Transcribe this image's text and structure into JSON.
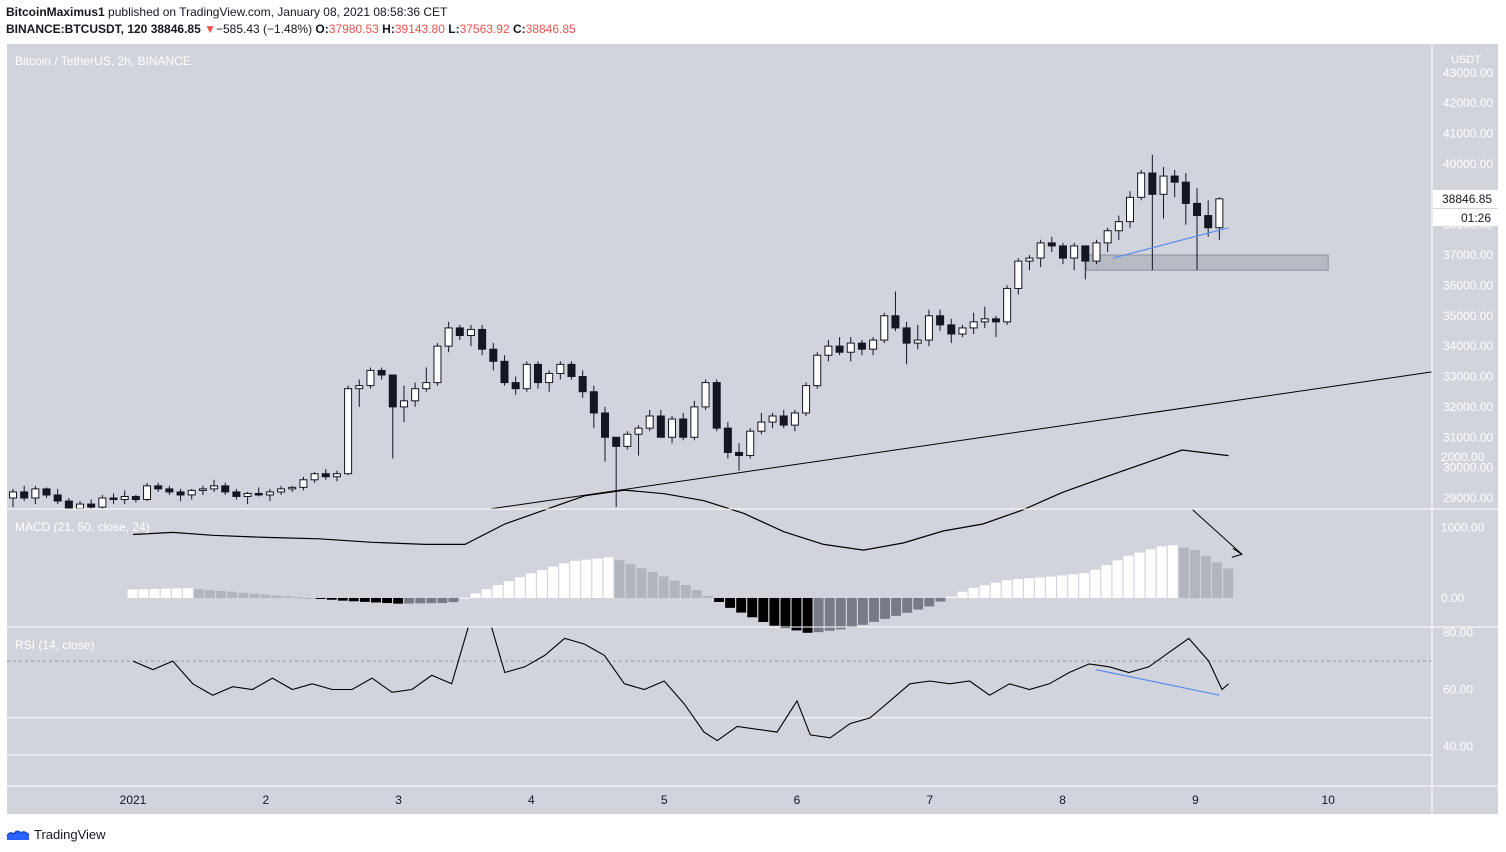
{
  "header": {
    "publisher": "BitcoinMaximus1",
    "published_text": "published on TradingView.com, January 08, 2021 08:58:36 CET",
    "symbol": "BINANCE:BTCUSDT, 120",
    "last": "38846.85",
    "change_arrow": "▼",
    "change": "−585.43 (−1.48%)",
    "o_label": "O:",
    "o_value": "37980.53",
    "h_label": "H:",
    "h_value": "39143.80",
    "l_label": "L:",
    "l_value": "37563.92",
    "c_label": "C:",
    "c_value": "38846.85"
  },
  "brand": {
    "name": "TradingView",
    "icon": "tradingview-logo-icon"
  },
  "colors": {
    "background": "#d1d4dc",
    "candle_up": "#ffffff",
    "candle_down": "#131722",
    "trendline": "#000000",
    "divergence": "#5b8def",
    "support_zone": "#b2b5be"
  },
  "chart_data": {
    "type": "candlestick",
    "title": "Bitcoin / TetherUS, 2h, BINANCE",
    "price_axis_label": "USDT",
    "last_price_label": "38846.85",
    "countdown_label": "01:26",
    "ylim": [
      28500,
      43300
    ],
    "y_ticks": [
      "29000.00",
      "30000.00",
      "31000.00",
      "32000.00",
      "33000.00",
      "34000.00",
      "35000.00",
      "36000.00",
      "37000.00",
      "38000.00",
      "39000.00",
      "40000.00",
      "41000.00",
      "42000.00",
      "43000.00"
    ],
    "x_ticks": [
      "2021",
      "2",
      "3",
      "4",
      "5",
      "6",
      "7",
      "8",
      "9",
      "10"
    ],
    "x_range_days": [
      0.0,
      10.8
    ],
    "candles": [
      [
        29000,
        29300,
        28700,
        29200
      ],
      [
        29200,
        29400,
        28900,
        29000
      ],
      [
        29000,
        29400,
        28800,
        29300
      ],
      [
        29300,
        29350,
        29000,
        29100
      ],
      [
        29100,
        29300,
        28800,
        28900
      ],
      [
        28900,
        29000,
        28500,
        28650
      ],
      [
        28650,
        28900,
        28600,
        28800
      ],
      [
        28800,
        28950,
        28600,
        28700
      ],
      [
        28700,
        29100,
        28600,
        29000
      ],
      [
        29000,
        29150,
        28800,
        28950
      ],
      [
        28950,
        29250,
        28800,
        29050
      ],
      [
        29050,
        29100,
        28850,
        28950
      ],
      [
        28950,
        29500,
        28900,
        29400
      ],
      [
        29400,
        29500,
        29200,
        29300
      ],
      [
        29300,
        29400,
        29100,
        29200
      ],
      [
        29200,
        29300,
        28900,
        29100
      ],
      [
        29100,
        29300,
        28950,
        29250
      ],
      [
        29250,
        29400,
        29100,
        29300
      ],
      [
        29300,
        29600,
        29200,
        29400
      ],
      [
        29400,
        29500,
        29100,
        29200
      ],
      [
        29200,
        29300,
        28950,
        29050
      ],
      [
        29050,
        29200,
        28800,
        29150
      ],
      [
        29150,
        29350,
        29050,
        29100
      ],
      [
        29100,
        29300,
        28900,
        29200
      ],
      [
        29200,
        29400,
        29100,
        29300
      ],
      [
        29300,
        29400,
        29200,
        29350
      ],
      [
        29350,
        29700,
        29250,
        29600
      ],
      [
        29600,
        29850,
        29500,
        29800
      ],
      [
        29800,
        29950,
        29600,
        29700
      ],
      [
        29700,
        29900,
        29550,
        29800
      ],
      [
        29800,
        32700,
        29750,
        32600
      ],
      [
        32600,
        32900,
        32000,
        32700
      ],
      [
        32700,
        33300,
        32600,
        33200
      ],
      [
        33200,
        33300,
        32900,
        33050
      ],
      [
        33050,
        33000,
        30300,
        32000
      ],
      [
        32000,
        32700,
        31500,
        32200
      ],
      [
        32200,
        32800,
        32000,
        32600
      ],
      [
        32600,
        33300,
        32500,
        32800
      ],
      [
        32800,
        34100,
        32700,
        34000
      ],
      [
        34000,
        34800,
        33800,
        34600
      ],
      [
        34600,
        34700,
        34200,
        34350
      ],
      [
        34350,
        34700,
        34000,
        34550
      ],
      [
        34550,
        34700,
        33700,
        33900
      ],
      [
        33900,
        34100,
        33200,
        33500
      ],
      [
        33500,
        33700,
        32700,
        32800
      ],
      [
        32800,
        33000,
        32400,
        32600
      ],
      [
        32600,
        33500,
        32500,
        33400
      ],
      [
        33400,
        33500,
        32600,
        32800
      ],
      [
        32800,
        33200,
        32500,
        33100
      ],
      [
        33100,
        33500,
        32900,
        33400
      ],
      [
        33400,
        33500,
        32900,
        33000
      ],
      [
        33000,
        33200,
        32300,
        32500
      ],
      [
        32500,
        32700,
        31300,
        31800
      ],
      [
        31800,
        32000,
        30200,
        31000
      ],
      [
        31000,
        30900,
        28700,
        30700
      ],
      [
        30700,
        31200,
        30600,
        31100
      ],
      [
        31100,
        31400,
        30400,
        31300
      ],
      [
        31300,
        31900,
        31200,
        31700
      ],
      [
        31700,
        31900,
        31100,
        31000
      ],
      [
        31000,
        31700,
        30800,
        31600
      ],
      [
        31600,
        31800,
        30900,
        31000
      ],
      [
        31000,
        32200,
        30900,
        32000
      ],
      [
        32000,
        32900,
        31900,
        32800
      ],
      [
        32800,
        32900,
        31200,
        31300
      ],
      [
        31300,
        31500,
        30300,
        30500
      ],
      [
        30500,
        30800,
        29900,
        30400
      ],
      [
        30400,
        31300,
        30300,
        31200
      ],
      [
        31200,
        31800,
        31100,
        31500
      ],
      [
        31500,
        31800,
        31300,
        31700
      ],
      [
        31700,
        31900,
        31300,
        31400
      ],
      [
        31400,
        31900,
        31200,
        31800
      ],
      [
        31800,
        32800,
        31700,
        32700
      ],
      [
        32700,
        33800,
        32600,
        33700
      ],
      [
        33700,
        34200,
        33500,
        34000
      ],
      [
        34000,
        34300,
        33700,
        33800
      ],
      [
        33800,
        34300,
        33500,
        34100
      ],
      [
        34100,
        34200,
        33700,
        33900
      ],
      [
        33900,
        34300,
        33700,
        34200
      ],
      [
        34200,
        35100,
        34100,
        35000
      ],
      [
        35000,
        35800,
        34500,
        34600
      ],
      [
        34600,
        34800,
        33400,
        34100
      ],
      [
        34100,
        34700,
        33900,
        34200
      ],
      [
        34200,
        35200,
        34000,
        35000
      ],
      [
        35000,
        35200,
        34500,
        34700
      ],
      [
        34700,
        34900,
        34100,
        34400
      ],
      [
        34400,
        34700,
        34300,
        34600
      ],
      [
        34600,
        35100,
        34400,
        34800
      ],
      [
        34800,
        35300,
        34600,
        34900
      ],
      [
        34900,
        35000,
        34300,
        34800
      ],
      [
        34800,
        36000,
        34700,
        35900
      ],
      [
        35900,
        36900,
        35700,
        36800
      ],
      [
        36800,
        37000,
        36500,
        36900
      ],
      [
        36900,
        37500,
        36600,
        37400
      ],
      [
        37400,
        37600,
        37100,
        37300
      ],
      [
        37300,
        37400,
        36700,
        36900
      ],
      [
        36900,
        37400,
        36500,
        37300
      ],
      [
        37300,
        37300,
        36200,
        36800
      ],
      [
        36800,
        37500,
        36700,
        37400
      ],
      [
        37400,
        37900,
        37100,
        37800
      ],
      [
        37800,
        38300,
        37500,
        38100
      ],
      [
        38100,
        39100,
        37900,
        38900
      ],
      [
        38900,
        39800,
        38800,
        39700
      ],
      [
        39700,
        40300,
        36500,
        39000
      ],
      [
        39000,
        39900,
        38200,
        39600
      ],
      [
        39600,
        39800,
        38900,
        39400
      ],
      [
        39400,
        39700,
        38000,
        38700
      ],
      [
        38700,
        39200,
        36500,
        38300
      ],
      [
        38300,
        38800,
        37600,
        37900
      ],
      [
        37900,
        38900,
        37500,
        38850
      ]
    ],
    "trendline": {
      "x": [
        2.5,
        10.8
      ],
      "y": [
        28520,
        33800
      ]
    },
    "support_zone": {
      "x": [
        7.18,
        9.0
      ],
      "y": [
        36500,
        37000
      ]
    },
    "price_divergence": {
      "x": [
        7.38,
        8.25
      ],
      "y": [
        36900,
        37900
      ]
    },
    "macd": {
      "title": "MACD (21, 50, close, 24)",
      "y_ticks": [
        "0.00",
        "1000.00",
        "2000.00"
      ],
      "line_x": [
        0.0,
        0.3,
        0.6,
        1.0,
        1.4,
        1.8,
        2.2,
        2.5,
        2.8,
        3.1,
        3.4,
        3.7,
        4.0,
        4.3,
        4.6,
        4.9,
        5.2,
        5.5,
        5.8,
        6.1,
        6.4,
        6.7,
        7.0,
        7.3,
        7.6,
        7.9,
        8.2,
        8.25
      ],
      "macd_line": [
        900,
        930,
        890,
        860,
        840,
        790,
        760,
        760,
        1050,
        1250,
        1450,
        1530,
        1480,
        1380,
        1200,
        940,
        760,
        680,
        780,
        950,
        1050,
        1250,
        1500,
        1700,
        1900,
        2100,
        2030,
        2020
      ],
      "histogram_x": [
        0.0,
        0.4,
        0.8,
        1.2,
        1.6,
        2.0,
        2.4,
        2.7,
        3.0,
        3.3,
        3.6,
        3.9,
        4.2,
        4.5,
        4.8,
        5.1,
        5.4,
        5.7,
        6.0,
        6.3,
        6.6,
        6.9,
        7.2,
        7.5,
        7.8,
        8.0,
        8.25
      ],
      "histogram": [
        120,
        140,
        80,
        20,
        -40,
        -80,
        -70,
        150,
        350,
        520,
        580,
        380,
        160,
        -140,
        -380,
        -500,
        -430,
        -280,
        -120,
        130,
        260,
        300,
        360,
        600,
        760,
        680,
        420
      ],
      "arrow": {
        "x": [
          7.98,
          8.35
        ],
        "y": [
          1250,
          620
        ]
      }
    },
    "rsi": {
      "title": "RSI (14, close)",
      "y_ticks": [
        "40.00",
        "60.00",
        "80.00"
      ],
      "upper_band": 70,
      "lower_band": 50,
      "x": [
        0.0,
        0.15,
        0.3,
        0.45,
        0.6,
        0.75,
        0.9,
        1.05,
        1.2,
        1.35,
        1.5,
        1.65,
        1.8,
        1.95,
        2.1,
        2.25,
        2.4,
        2.55,
        2.65,
        2.8,
        2.95,
        3.1,
        3.25,
        3.4,
        3.55,
        3.7,
        3.85,
        4.0,
        4.15,
        4.3,
        4.4,
        4.55,
        4.7,
        4.85,
        5.0,
        5.1,
        5.25,
        5.4,
        5.55,
        5.7,
        5.85,
        6.0,
        6.15,
        6.3,
        6.45,
        6.6,
        6.75,
        6.9,
        7.05,
        7.2,
        7.35,
        7.5,
        7.65,
        7.8,
        7.95,
        8.1,
        8.2,
        8.25
      ],
      "y": [
        70,
        67,
        70,
        62,
        58,
        61,
        60,
        64,
        60,
        62,
        60,
        60,
        64,
        59,
        60,
        65,
        62,
        86,
        90,
        66,
        68,
        72,
        78,
        76,
        72,
        62,
        60,
        63,
        55,
        45,
        42,
        47,
        46,
        45,
        56,
        44,
        43,
        48,
        50,
        56,
        62,
        63,
        62,
        63,
        58,
        62,
        60,
        62,
        66,
        69,
        68,
        66,
        68,
        73,
        78,
        70,
        60,
        62
      ],
      "divergence": {
        "x": [
          7.25,
          8.18
        ],
        "y": [
          67,
          58
        ]
      }
    }
  }
}
